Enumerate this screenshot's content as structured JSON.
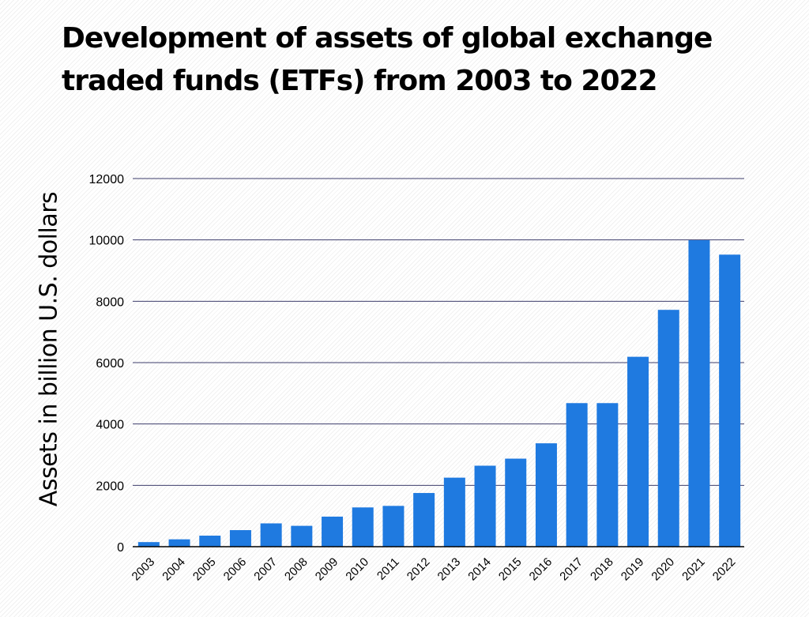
{
  "chart_data": {
    "type": "bar",
    "title": "Development of assets of global exchange traded funds (ETFs) from 2003 to 2022",
    "xlabel": "",
    "ylabel": "Assets in billion U.S. dollars",
    "ylim": [
      0,
      12000
    ],
    "yticks": [
      0,
      2000,
      4000,
      6000,
      8000,
      10000,
      12000
    ],
    "categories": [
      "2003",
      "2004",
      "2005",
      "2006",
      "2007",
      "2008",
      "2009",
      "2010",
      "2011",
      "2012",
      "2013",
      "2014",
      "2015",
      "2016",
      "2017",
      "2018",
      "2019",
      "2020",
      "2021",
      "2022"
    ],
    "values": [
      150,
      240,
      360,
      540,
      760,
      680,
      980,
      1280,
      1330,
      1750,
      2250,
      2640,
      2870,
      3370,
      4680,
      4680,
      6190,
      7720,
      9990,
      9520
    ],
    "grid": true,
    "legend": "none",
    "colors": {
      "bar": "#1f7ae0",
      "gridline": "#3d3d6b",
      "axis": "#000000",
      "text": "#000000"
    }
  }
}
